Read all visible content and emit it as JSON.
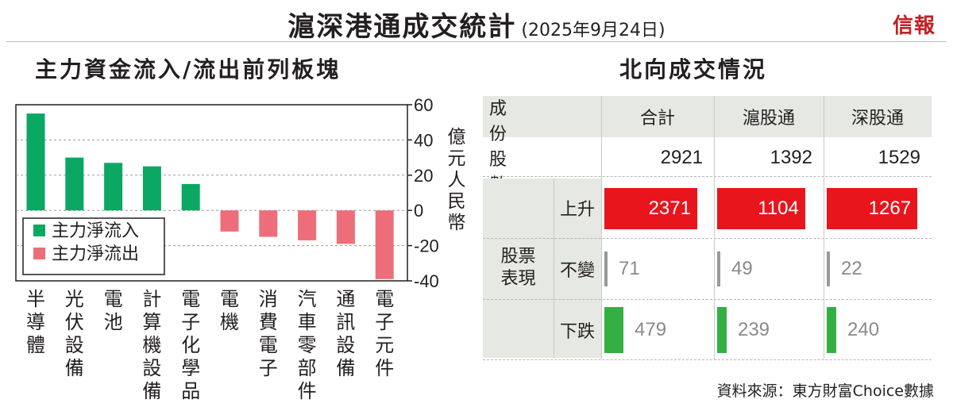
{
  "header": {
    "title": "滬深港通成交統計",
    "date": "(2025年9月24日)",
    "brand": "信報"
  },
  "left_panel": {
    "title": "主力資金流入/流出前列板塊"
  },
  "right_panel": {
    "title": "北向成交情況"
  },
  "source_note": "資料來源：東方財富Choice數據",
  "colors": {
    "inflow": "#0aa862",
    "outflow": "#ed6e7a",
    "up": "#e8151c",
    "down": "#34b043",
    "neutral": "#999999",
    "header_bg": "#e5e8e3"
  },
  "chart_data": [
    {
      "type": "bar",
      "title": "主力資金流入/流出前列板塊",
      "categories": [
        "半導體",
        "光伏設備",
        "電池",
        "計算機設備",
        "電子化學品",
        "電機",
        "消費電子",
        "汽車零部件",
        "通訊設備",
        "電子元件"
      ],
      "series": [
        {
          "name": "主力淨流入",
          "color": "#0aa862",
          "values": [
            55,
            30,
            27,
            25,
            15,
            null,
            null,
            null,
            null,
            null
          ]
        },
        {
          "name": "主力淨流出",
          "color": "#ed6e7a",
          "values": [
            null,
            null,
            null,
            null,
            null,
            -12,
            -15,
            -17,
            -19,
            -39
          ]
        }
      ],
      "ylabel": "億元人民幣",
      "ylim": [
        -40,
        60
      ],
      "yticks": [
        60,
        40,
        20,
        0,
        -20,
        -40
      ],
      "grid": true,
      "legend_position": "lower-left"
    },
    {
      "type": "table",
      "title": "北向成交情況",
      "columns": [
        "合計",
        "滬股通",
        "深股通"
      ],
      "rows": [
        {
          "label": "成份股數量",
          "values": [
            2921,
            1392,
            1529
          ]
        }
      ],
      "group_label": "股票表現",
      "performance": [
        {
          "label": "上升",
          "values": [
            2371,
            1104,
            1267
          ]
        },
        {
          "label": "不變",
          "values": [
            71,
            49,
            22
          ]
        },
        {
          "label": "下跌",
          "values": [
            479,
            239,
            240
          ]
        }
      ]
    }
  ]
}
